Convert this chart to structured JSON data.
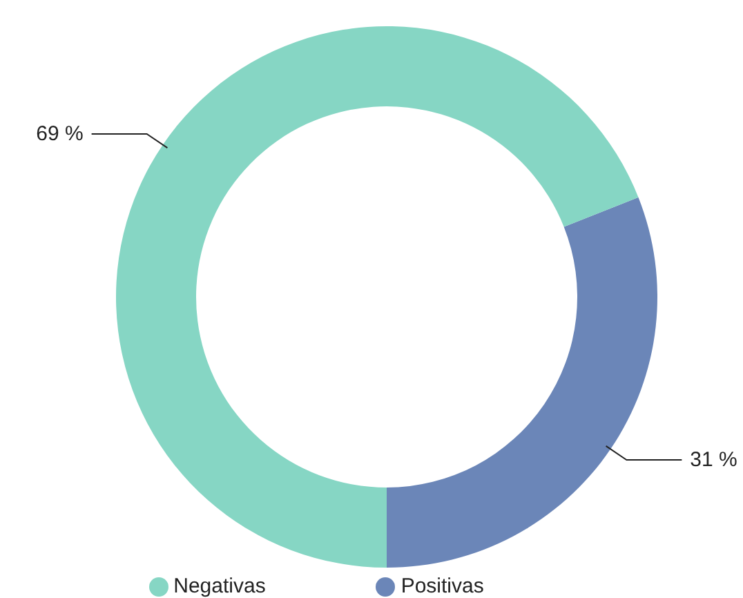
{
  "chart_data": {
    "type": "donut",
    "categories": [
      "Positivas",
      "Negativas"
    ],
    "values": [
      31,
      69
    ],
    "colors": [
      "#6b86b8",
      "#86d6c4"
    ],
    "value_labels": [
      "31 %",
      "69 %"
    ],
    "legend": "bottom"
  }
}
